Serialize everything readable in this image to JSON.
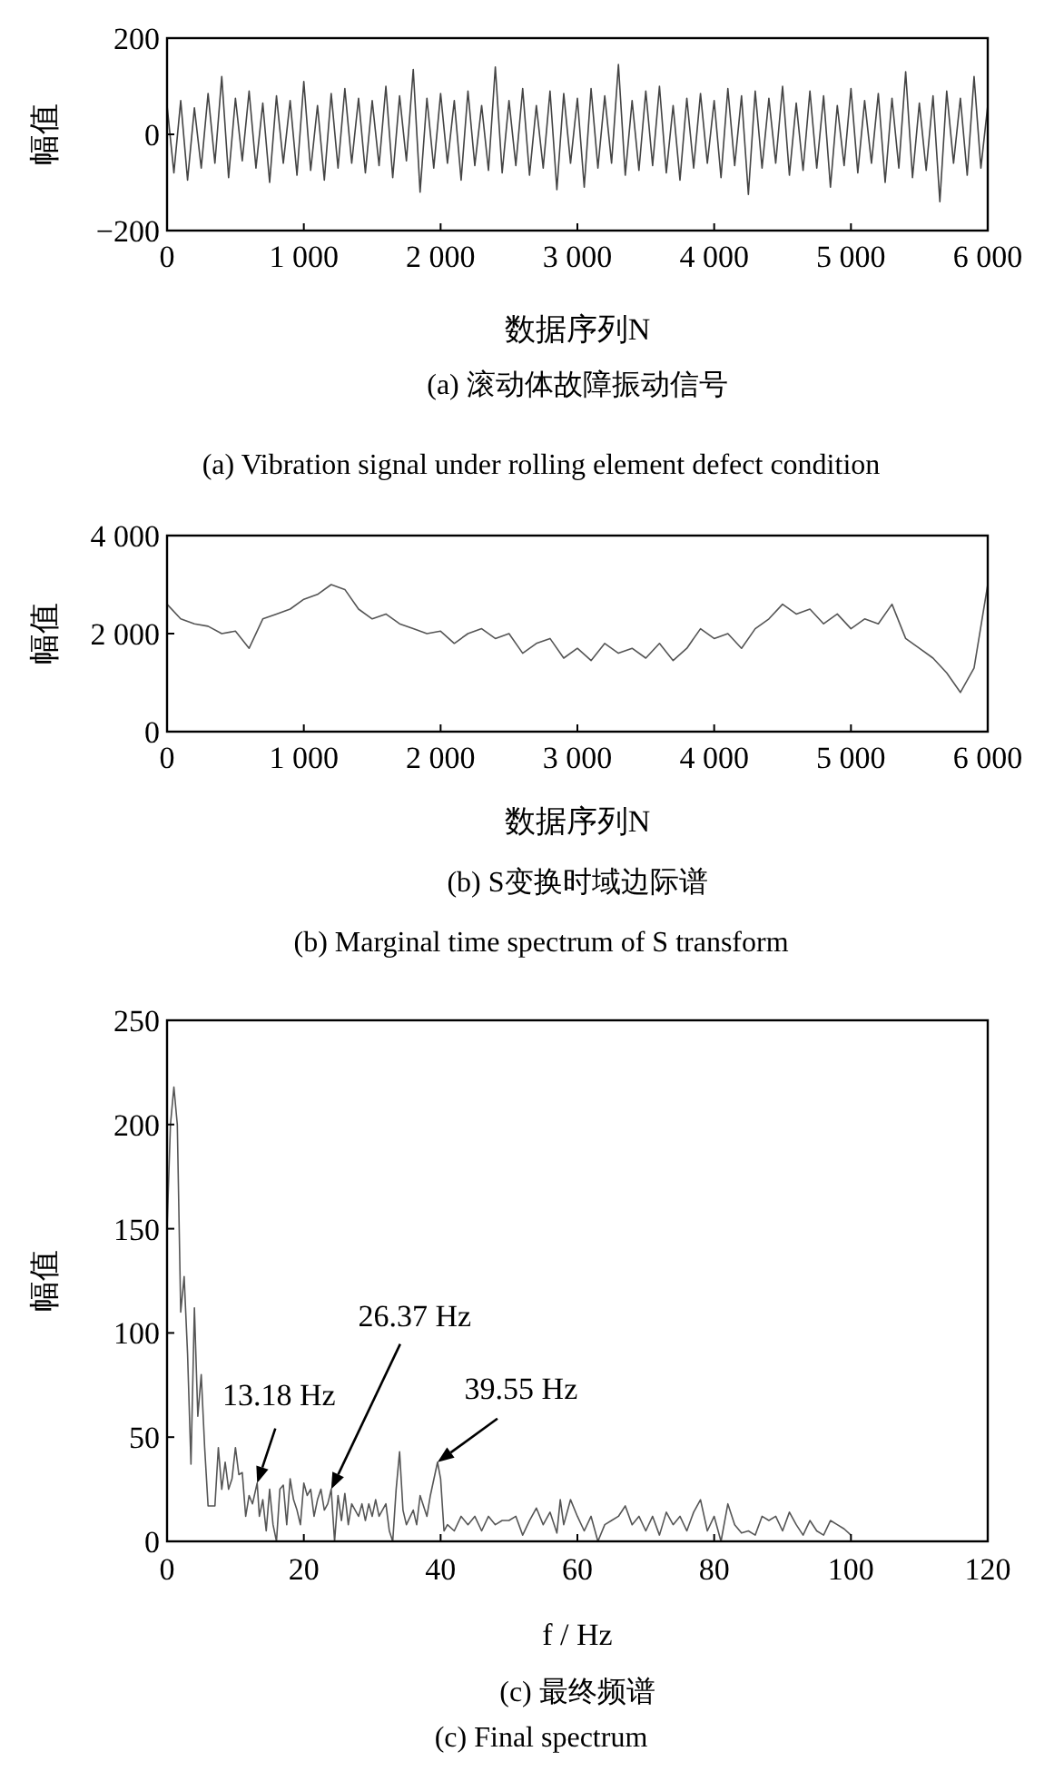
{
  "chart_data": [
    {
      "type": "line",
      "title": "(a)  滚动体故障振动信号",
      "subtitle": "(a)  Vibration signal under rolling element defect condition",
      "xlabel": "数据序列N",
      "ylabel": "幅值",
      "xlim": [
        0,
        6000
      ],
      "ylim": [
        -200,
        200
      ],
      "xticks": [
        0,
        {
          "value": 1000,
          "label": "1 000"
        },
        {
          "value": 2000,
          "label": "2 000"
        },
        {
          "value": 3000,
          "label": "3 000"
        },
        {
          "value": 4000,
          "label": "4 000"
        },
        {
          "value": 5000,
          "label": "5 000"
        },
        {
          "value": 6000,
          "label": "6 000"
        }
      ],
      "yticks": [
        {
          "value": -200,
          "label": "−200"
        },
        0,
        200
      ],
      "x": [
        0,
        50,
        100,
        150,
        200,
        250,
        300,
        350,
        400,
        450,
        500,
        550,
        600,
        650,
        700,
        750,
        800,
        850,
        900,
        950,
        1000,
        1050,
        1100,
        1150,
        1200,
        1250,
        1300,
        1350,
        1400,
        1450,
        1500,
        1550,
        1600,
        1650,
        1700,
        1750,
        1800,
        1850,
        1900,
        1950,
        2000,
        2050,
        2100,
        2150,
        2200,
        2250,
        2300,
        2350,
        2400,
        2450,
        2500,
        2550,
        2600,
        2650,
        2700,
        2750,
        2800,
        2850,
        2900,
        2950,
        3000,
        3050,
        3100,
        3150,
        3200,
        3250,
        3300,
        3350,
        3400,
        3450,
        3500,
        3550,
        3600,
        3650,
        3700,
        3750,
        3800,
        3850,
        3900,
        3950,
        4000,
        4050,
        4100,
        4150,
        4200,
        4250,
        4300,
        4350,
        4400,
        4450,
        4500,
        4550,
        4600,
        4650,
        4700,
        4750,
        4800,
        4850,
        4900,
        4950,
        5000,
        5050,
        5100,
        5150,
        5200,
        5250,
        5300,
        5350,
        5400,
        5450,
        5500,
        5550,
        5600,
        5650,
        5700,
        5750,
        5800,
        5850,
        5900,
        5950,
        6000
      ],
      "series": [
        {
          "color": "#444444",
          "values": [
            60,
            -80,
            70,
            -95,
            55,
            -70,
            85,
            -60,
            120,
            -90,
            75,
            -55,
            90,
            -70,
            65,
            -100,
            80,
            -60,
            70,
            -85,
            110,
            -75,
            60,
            -95,
            85,
            -70,
            95,
            -60,
            75,
            -80,
            70,
            -65,
            100,
            -90,
            80,
            -55,
            135,
            -120,
            75,
            -70,
            85,
            -60,
            70,
            -95,
            90,
            -65,
            60,
            -75,
            140,
            -80,
            70,
            -65,
            95,
            -85,
            60,
            -70,
            90,
            -115,
            85,
            -60,
            75,
            -110,
            95,
            -70,
            80,
            -60,
            145,
            -85,
            70,
            -75,
            90,
            -65,
            100,
            -80,
            60,
            -95,
            75,
            -70,
            85,
            -60,
            70,
            -90,
            95,
            -65,
            80,
            -125,
            90,
            -70,
            75,
            -60,
            100,
            -85,
            65,
            -75,
            90,
            -70,
            80,
            -110,
            60,
            -65,
            95,
            -80,
            70,
            -60,
            85,
            -100,
            75,
            -70,
            130,
            -90,
            65,
            -75,
            80,
            -140,
            90,
            -60,
            75,
            -85,
            120,
            -70,
            60
          ]
        }
      ]
    },
    {
      "type": "line",
      "title": "(b) S变换时域边际谱",
      "subtitle": "(b) Marginal time spectrum of S transform",
      "xlabel": "数据序列N",
      "ylabel": "幅值",
      "xlim": [
        0,
        6000
      ],
      "ylim": [
        0,
        4000
      ],
      "xticks": [
        0,
        {
          "value": 1000,
          "label": "1 000"
        },
        {
          "value": 2000,
          "label": "2 000"
        },
        {
          "value": 3000,
          "label": "3 000"
        },
        {
          "value": 4000,
          "label": "4 000"
        },
        {
          "value": 5000,
          "label": "5 000"
        },
        {
          "value": 6000,
          "label": "6 000"
        }
      ],
      "yticks": [
        0,
        {
          "value": 2000,
          "label": "2 000"
        },
        {
          "value": 4000,
          "label": "4 000"
        }
      ],
      "x": [
        0,
        100,
        200,
        300,
        400,
        500,
        600,
        700,
        800,
        900,
        1000,
        1100,
        1200,
        1300,
        1400,
        1500,
        1600,
        1700,
        1800,
        1900,
        2000,
        2100,
        2200,
        2300,
        2400,
        2500,
        2600,
        2700,
        2800,
        2900,
        3000,
        3100,
        3200,
        3300,
        3400,
        3500,
        3600,
        3700,
        3800,
        3900,
        4000,
        4100,
        4200,
        4300,
        4400,
        4500,
        4600,
        4700,
        4800,
        4900,
        5000,
        5100,
        5200,
        5300,
        5400,
        5500,
        5600,
        5700,
        5800,
        5900,
        6000
      ],
      "series": [
        {
          "color": "#555555",
          "values": [
            2600,
            2300,
            2200,
            2150,
            2000,
            2050,
            1700,
            2300,
            2400,
            2500,
            2700,
            2800,
            3000,
            2900,
            2500,
            2300,
            2400,
            2200,
            2100,
            2000,
            2050,
            1800,
            2000,
            2100,
            1900,
            2000,
            1600,
            1800,
            1900,
            1500,
            1700,
            1450,
            1800,
            1600,
            1700,
            1500,
            1800,
            1450,
            1700,
            2100,
            1900,
            2000,
            1700,
            2100,
            2300,
            2600,
            2400,
            2500,
            2200,
            2400,
            2100,
            2300,
            2200,
            2600,
            1900,
            1700,
            1500,
            1200,
            800,
            1300,
            3000
          ]
        }
      ]
    },
    {
      "type": "line",
      "title": "(c)  最终频谱",
      "subtitle": "(c)  Final spectrum",
      "xlabel": "f / Hz",
      "ylabel": "幅值",
      "xlim": [
        0,
        120
      ],
      "ylim": [
        0,
        250
      ],
      "xticks": [
        0,
        20,
        40,
        60,
        80,
        100,
        120
      ],
      "yticks": [
        0,
        50,
        100,
        150,
        200,
        250
      ],
      "annotations": [
        {
          "text": "13.18 Hz",
          "x": 13.18,
          "y": 28
        },
        {
          "text": "26.37 Hz",
          "x": 24,
          "y": 25
        },
        {
          "text": "39.55 Hz",
          "x": 39.55,
          "y": 38
        }
      ],
      "x": [
        0,
        0.5,
        1,
        1.5,
        2,
        2.5,
        3,
        3.5,
        4,
        4.5,
        5,
        5.5,
        6,
        7,
        7.5,
        8,
        8.5,
        9,
        9.5,
        10,
        10.5,
        11,
        11.5,
        12,
        12.5,
        13.18,
        13.5,
        14,
        14.5,
        15,
        15.5,
        16,
        16.5,
        17,
        17.5,
        18,
        18.5,
        19,
        19.5,
        20,
        20.5,
        21,
        21.5,
        22,
        22.5,
        23,
        23.5,
        24,
        24.5,
        25,
        25.5,
        26,
        26.5,
        27,
        28,
        28.5,
        29,
        29.5,
        30,
        30.5,
        31,
        32,
        32.5,
        33,
        33.5,
        34,
        34.5,
        35,
        36,
        36.5,
        37,
        38,
        38.5,
        39.55,
        40,
        40.5,
        41,
        42,
        43,
        44,
        45,
        46,
        47,
        48,
        49,
        50,
        51,
        52,
        53,
        54,
        55,
        56,
        57,
        57.5,
        58,
        59,
        60,
        61,
        62,
        63,
        64,
        65,
        66,
        67,
        68,
        69,
        70,
        71,
        72,
        73,
        74,
        75,
        76,
        77,
        78,
        79,
        80,
        81,
        82,
        83,
        84,
        85,
        86,
        87,
        88,
        89,
        90,
        91,
        92,
        93,
        94,
        95,
        96,
        97,
        98,
        99,
        100
      ],
      "series": [
        {
          "color": "#555555",
          "values": [
            150,
            200,
            218,
            200,
            110,
            127,
            90,
            37,
            112,
            60,
            80,
            45,
            17,
            17,
            45,
            25,
            38,
            25,
            30,
            45,
            32,
            33,
            12,
            22,
            18,
            28,
            12,
            20,
            5,
            25,
            8,
            0,
            25,
            27,
            8,
            30,
            20,
            15,
            8,
            28,
            22,
            25,
            12,
            20,
            25,
            15,
            18,
            25,
            0,
            22,
            10,
            23,
            8,
            18,
            12,
            18,
            10,
            18,
            12,
            20,
            12,
            18,
            5,
            0,
            25,
            43,
            15,
            8,
            15,
            8,
            22,
            12,
            22,
            38,
            30,
            5,
            8,
            5,
            12,
            8,
            12,
            5,
            12,
            8,
            10,
            10,
            12,
            3,
            10,
            16,
            8,
            14,
            4,
            20,
            8,
            20,
            12,
            5,
            12,
            0,
            8,
            10,
            12,
            17,
            8,
            12,
            5,
            12,
            3,
            14,
            8,
            12,
            5,
            14,
            20,
            5,
            12,
            0,
            18,
            8,
            4,
            5,
            3,
            12,
            10,
            12,
            5,
            14,
            8,
            3,
            10,
            5,
            3,
            10,
            8,
            6,
            3
          ]
        }
      ]
    }
  ]
}
